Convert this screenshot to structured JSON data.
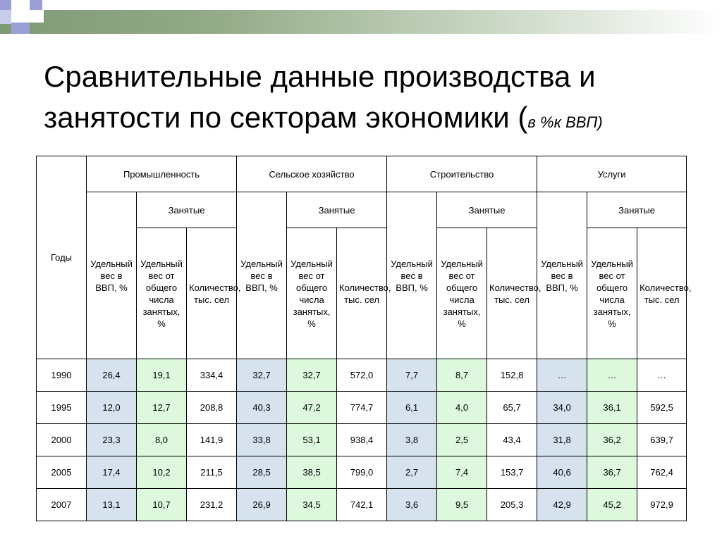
{
  "title": {
    "main": "Сравнительные данные производства и занятости по секторам экономики (",
    "sub": "в %к ВВП)"
  },
  "table": {
    "years_header": "Годы",
    "sectors": [
      "Промышленность",
      "Сельское хозяйство",
      "Строительство",
      "Услуги"
    ],
    "employed_header": "Занятые",
    "col_share_gdp": "Удельный вес в ВВП, %",
    "col_share_employed": "Удельный вес от общего числа занятых, %",
    "col_count": "Количество, тыс. сел",
    "rows": [
      {
        "year": "1990",
        "cells": [
          "26,4",
          "19,1",
          "334,4",
          "32,7",
          "32,7",
          "572,0",
          "7,7",
          "8,7",
          "152,8",
          "…",
          "…",
          "…"
        ]
      },
      {
        "year": "1995",
        "cells": [
          "12,0",
          "12,7",
          "208,8",
          "40,3",
          "47,2",
          "774,7",
          "6,1",
          "4,0",
          "65,7",
          "34,0",
          "36,1",
          "592,5"
        ]
      },
      {
        "year": "2000",
        "cells": [
          "23,3",
          "8,0",
          "141,9",
          "33,8",
          "53,1",
          "938,4",
          "3,8",
          "2,5",
          "43,4",
          "31,8",
          "36,2",
          "639,7"
        ]
      },
      {
        "year": "2005",
        "cells": [
          "17,4",
          "10,2",
          "211,5",
          "28,5",
          "38,5",
          "799,0",
          "2,7",
          "7,4",
          "153,7",
          "40,6",
          "36,7",
          "762,4"
        ]
      },
      {
        "year": "2007",
        "cells": [
          "13,1",
          "10,7",
          "231,2",
          "26,9",
          "34,5",
          "742,1",
          "3,6",
          "9,5",
          "205,3",
          "42,9",
          "45,2",
          "972,9"
        ]
      }
    ]
  }
}
